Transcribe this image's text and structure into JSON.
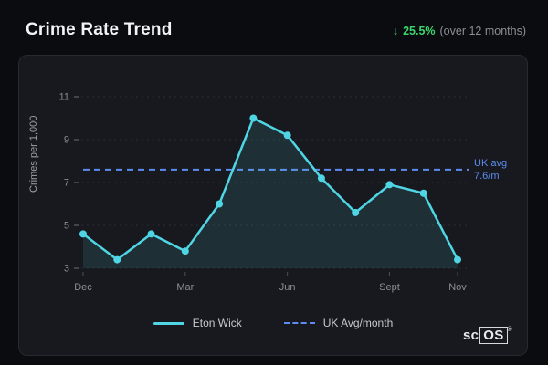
{
  "header": {
    "title": "Crime Rate Trend",
    "change_arrow": "↓",
    "change_value": "25.5%",
    "change_note": "(over 12 months)"
  },
  "colors": {
    "cyan": "#4fd5e3",
    "blue": "#5b8def",
    "green": "#3dd56d",
    "grid": "#2a2d34",
    "area_fill": "rgba(79,213,227,0.12)"
  },
  "chart_data": {
    "type": "line",
    "title": "Crime Rate Trend",
    "x": [
      "Dec",
      "Jan",
      "Feb",
      "Mar",
      "Apr",
      "May",
      "Jun",
      "Jul",
      "Aug",
      "Sept",
      "Oct",
      "Nov"
    ],
    "series": [
      {
        "name": "Eton Wick",
        "values": [
          4.6,
          3.4,
          4.6,
          3.8,
          6.0,
          10.0,
          9.2,
          7.2,
          5.6,
          6.9,
          6.5,
          3.4
        ]
      }
    ],
    "reference_line": {
      "name": "UK Avg/month",
      "value": 7.6,
      "label_line1": "UK avg",
      "label_line2": "7.6/m"
    },
    "ylabel": "Crimes per 1,000",
    "ylim": [
      3,
      11
    ],
    "yticks": [
      3,
      5,
      7,
      9,
      11
    ],
    "xticks": [
      {
        "label": "Dec",
        "index": 0
      },
      {
        "label": "Mar",
        "index": 3
      },
      {
        "label": "Jun",
        "index": 6
      },
      {
        "label": "Sept",
        "index": 9
      },
      {
        "label": "Nov",
        "index": 11
      }
    ],
    "grid": true,
    "legend_position": "bottom"
  },
  "legend": [
    {
      "label": "Eton Wick",
      "marker": "solid-cyan"
    },
    {
      "label": "UK Avg/month",
      "marker": "dashed-blue"
    }
  ],
  "footer": {
    "logo_prefix": "sc",
    "logo_box": "OS",
    "logo_reg": "®"
  }
}
